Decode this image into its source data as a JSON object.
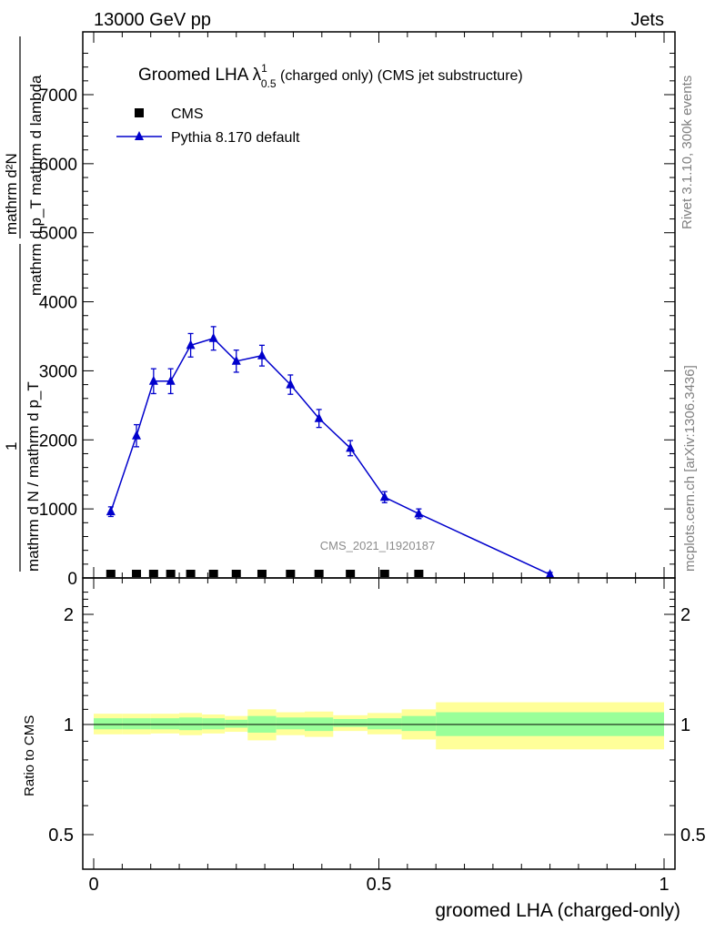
{
  "header": {
    "left": "13000 GeV pp",
    "right": "Jets"
  },
  "side_labels": {
    "rivet": "Rivet 3.1.10,  300k events",
    "mcplots": "mcplots.cern.ch [arXiv:1306.3436]"
  },
  "colors": {
    "mc": "#0000cc",
    "data": "#000000",
    "band_inner": "#99ff99",
    "band_outer": "#ffff99"
  },
  "chart_data": [
    {
      "type": "line",
      "title_main": "Groomed LHA ",
      "title_sym": "λ",
      "title_sup": "1",
      "title_sub": "0.5",
      "title_rest": " (charged only) (CMS jet substructure)",
      "watermark": "CMS_2021_I1920187",
      "ylabel_num": "mathrm d²N",
      "ylabel_den": "mathrm d p_T mathrm d lambda",
      "ylabel_mid": "1",
      "ylabel_lower": "mathrm d N / mathrm d p_T",
      "xlim": [
        -0.02,
        1.0
      ],
      "ylim": [
        0,
        7800
      ],
      "yticks": [
        0,
        1000,
        2000,
        3000,
        4000,
        5000,
        6000,
        7000
      ],
      "ytick_labels": [
        "0",
        "1000",
        "2000",
        "3000",
        "4000",
        "5000",
        "6000",
        "7000"
      ],
      "legend": [
        {
          "name": "CMS",
          "marker": "square"
        },
        {
          "name": "Pythia 8.170 default",
          "marker": "triangle"
        }
      ],
      "series": [
        {
          "name": "CMS",
          "x": [
            0.03,
            0.075,
            0.105,
            0.135,
            0.17,
            0.21,
            0.25,
            0.295,
            0.345,
            0.395,
            0.45,
            0.51,
            0.57
          ],
          "y": [
            0,
            0,
            0,
            0,
            0,
            0,
            0,
            0,
            0,
            0,
            0,
            0,
            0
          ]
        },
        {
          "name": "Pythia 8.170 default",
          "x": [
            0.03,
            0.075,
            0.105,
            0.135,
            0.17,
            0.21,
            0.25,
            0.295,
            0.345,
            0.395,
            0.45,
            0.51,
            0.57,
            0.8
          ],
          "y": [
            960,
            2060,
            2850,
            2850,
            3370,
            3470,
            3140,
            3220,
            2800,
            2310,
            1880,
            1170,
            930,
            50
          ],
          "err": [
            70,
            160,
            180,
            180,
            170,
            170,
            160,
            150,
            140,
            130,
            110,
            80,
            70,
            30
          ]
        }
      ]
    },
    {
      "type": "area",
      "ylabel": "Ratio to CMS",
      "xlabel": "groomed LHA (charged-only)",
      "xlim": [
        -0.02,
        1.0
      ],
      "ylog": true,
      "ylim": [
        0.4,
        2.4
      ],
      "yticks": [
        0.5,
        1,
        2
      ],
      "ytick_labels": [
        "0.5",
        "1",
        "2"
      ],
      "xticks": [
        0,
        0.5,
        1
      ],
      "xtick_labels": [
        "0",
        "0.5",
        "1"
      ],
      "bins": [
        {
          "lo": 0.0,
          "hi": 0.05,
          "inner": [
            0.97,
            1.04
          ],
          "outer": [
            0.94,
            1.07
          ]
        },
        {
          "lo": 0.05,
          "hi": 0.1,
          "inner": [
            0.97,
            1.04
          ],
          "outer": [
            0.94,
            1.07
          ]
        },
        {
          "lo": 0.1,
          "hi": 0.15,
          "inner": [
            0.97,
            1.04
          ],
          "outer": [
            0.945,
            1.07
          ]
        },
        {
          "lo": 0.15,
          "hi": 0.19,
          "inner": [
            0.965,
            1.045
          ],
          "outer": [
            0.935,
            1.075
          ]
        },
        {
          "lo": 0.19,
          "hi": 0.23,
          "inner": [
            0.97,
            1.04
          ],
          "outer": [
            0.945,
            1.065
          ]
        },
        {
          "lo": 0.23,
          "hi": 0.27,
          "inner": [
            0.98,
            1.03
          ],
          "outer": [
            0.955,
            1.055
          ]
        },
        {
          "lo": 0.27,
          "hi": 0.32,
          "inner": [
            0.95,
            1.055
          ],
          "outer": [
            0.905,
            1.1
          ]
        },
        {
          "lo": 0.32,
          "hi": 0.37,
          "inner": [
            0.97,
            1.045
          ],
          "outer": [
            0.935,
            1.08
          ]
        },
        {
          "lo": 0.37,
          "hi": 0.42,
          "inner": [
            0.96,
            1.045
          ],
          "outer": [
            0.925,
            1.085
          ]
        },
        {
          "lo": 0.42,
          "hi": 0.48,
          "inner": [
            0.985,
            1.035
          ],
          "outer": [
            0.96,
            1.06
          ]
        },
        {
          "lo": 0.48,
          "hi": 0.54,
          "inner": [
            0.97,
            1.04
          ],
          "outer": [
            0.94,
            1.075
          ]
        },
        {
          "lo": 0.54,
          "hi": 0.6,
          "inner": [
            0.96,
            1.055
          ],
          "outer": [
            0.91,
            1.1
          ]
        },
        {
          "lo": 0.6,
          "hi": 1.0,
          "inner": [
            0.93,
            1.08
          ],
          "outer": [
            0.855,
            1.15
          ]
        }
      ]
    }
  ]
}
